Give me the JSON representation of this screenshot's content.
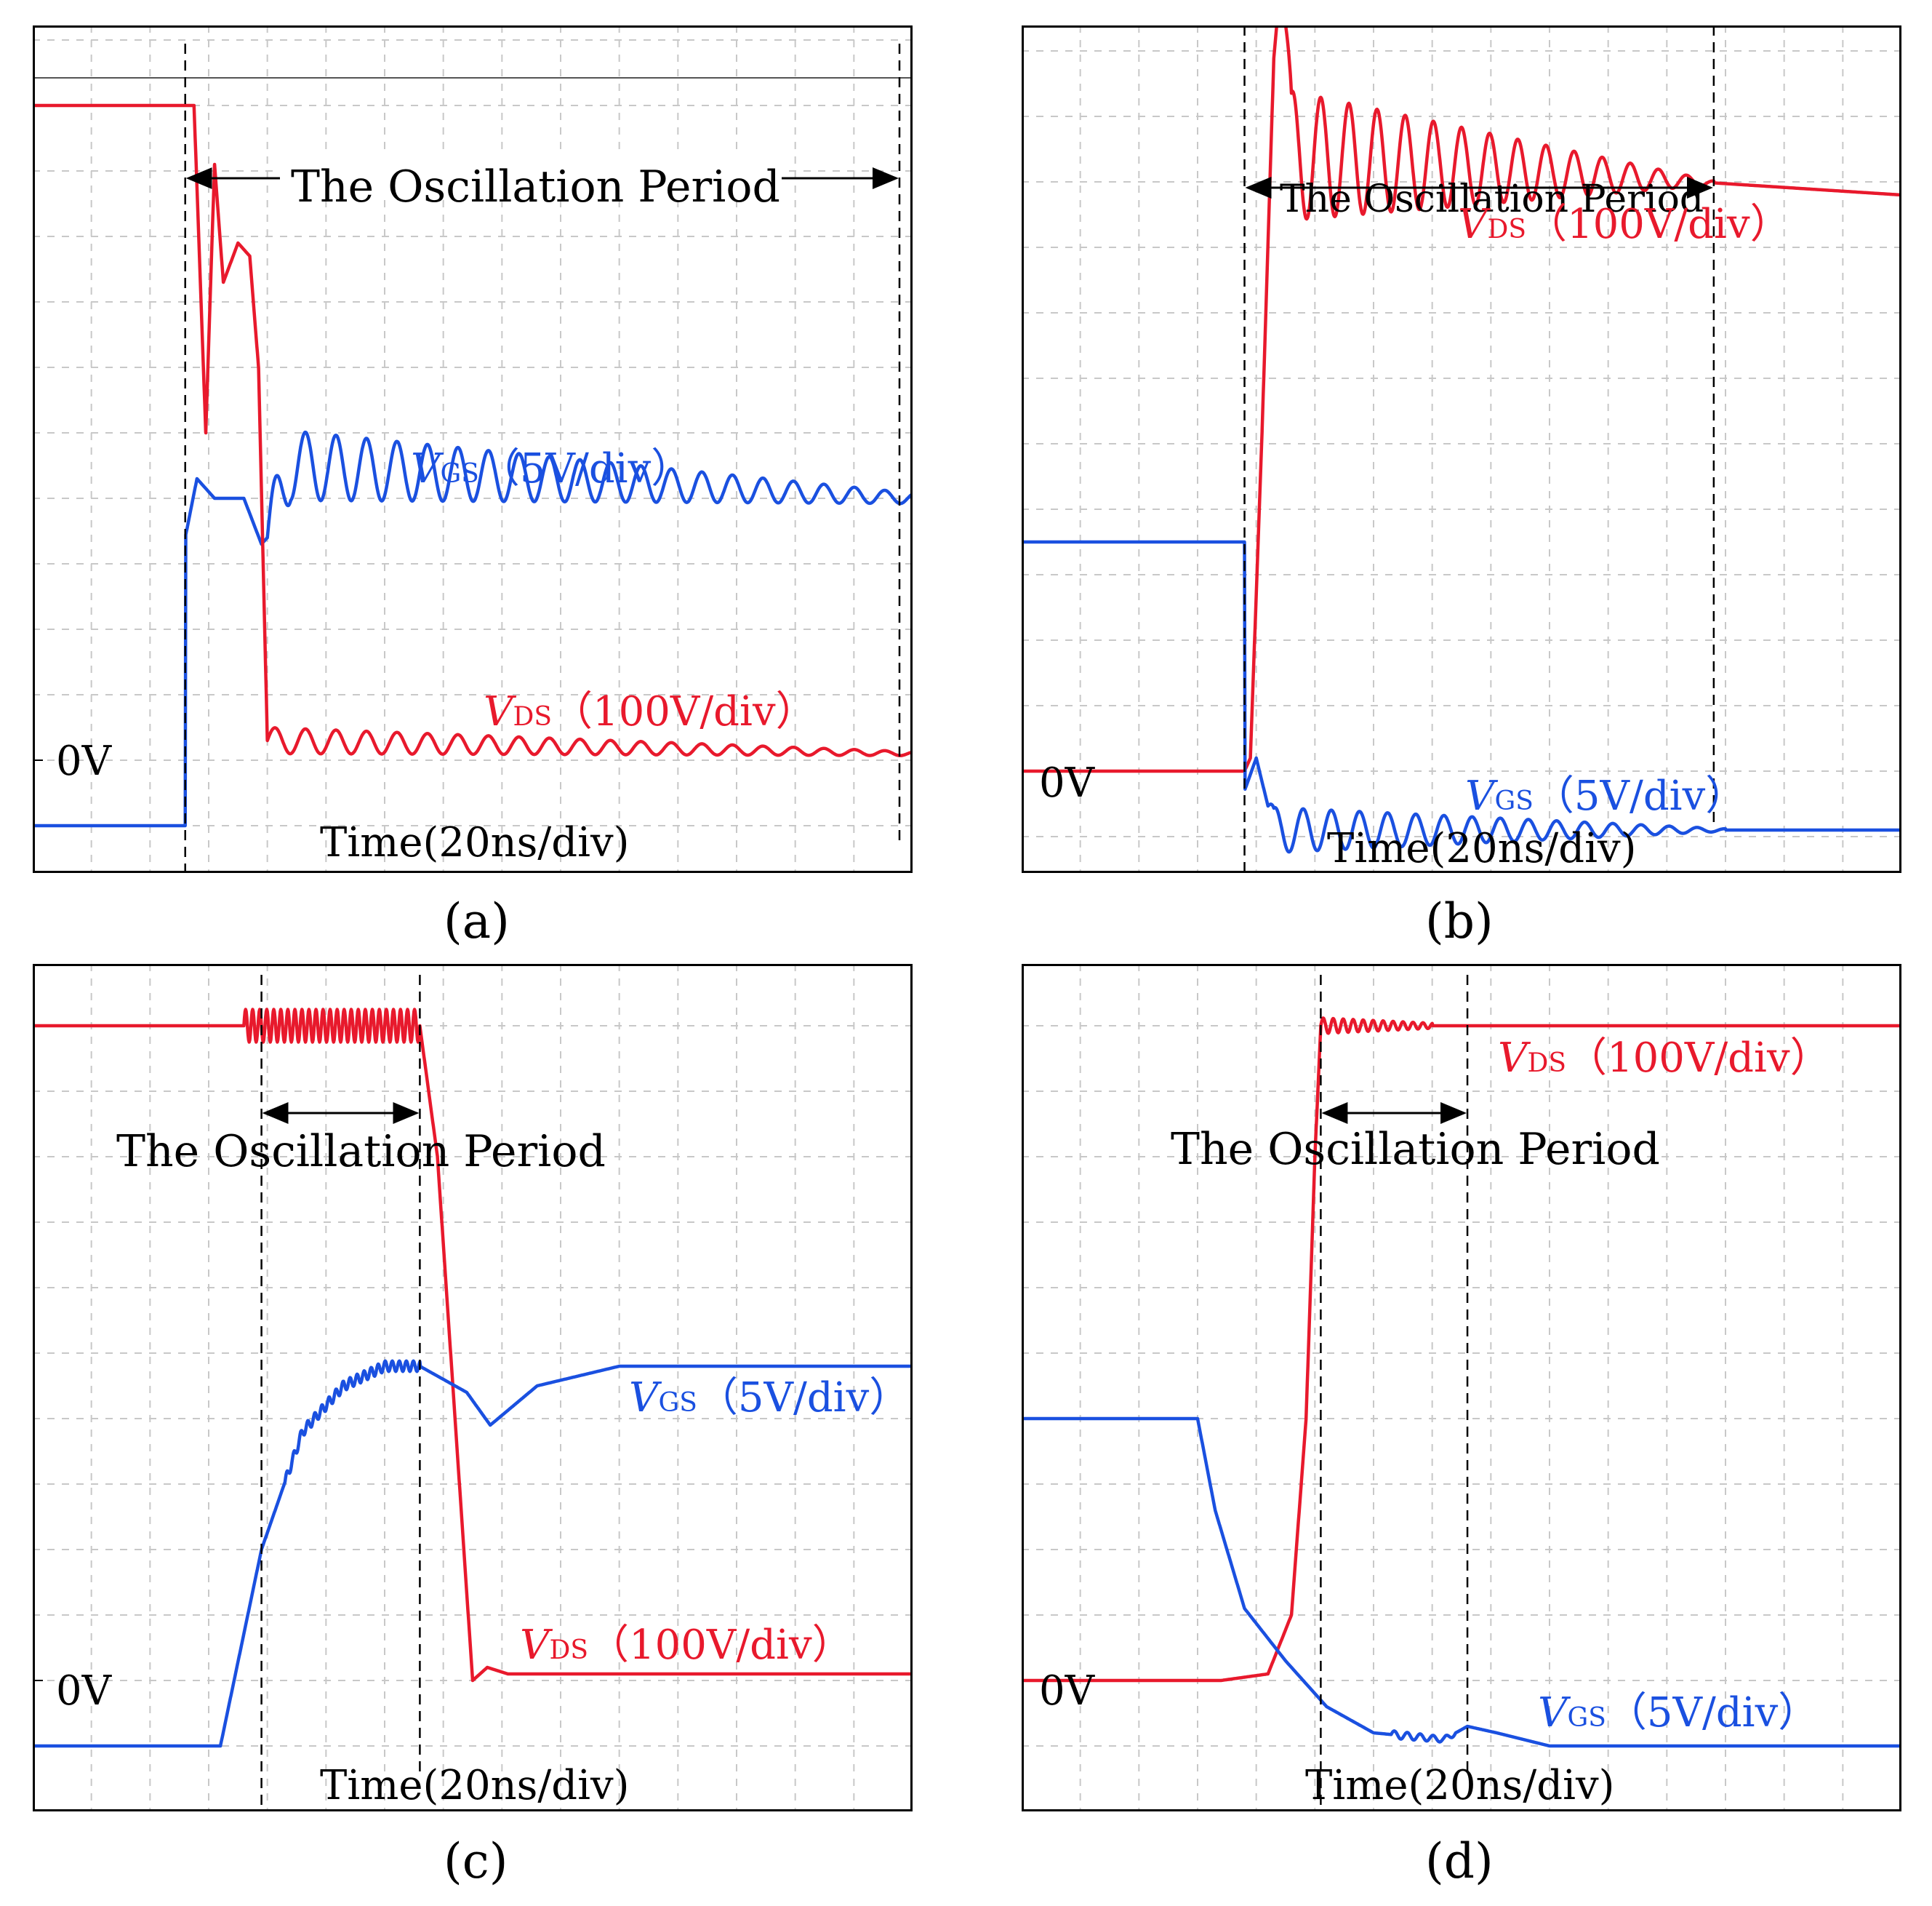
{
  "panels": [
    {
      "id": "a",
      "caption": "(a)",
      "zero_label": "0V",
      "time_label": "Time(20ns/div)",
      "period_label": "The Oscillation Period",
      "vgs_label": {
        "sym": "V",
        "sub": "GS",
        "rest": "（5V/div）"
      },
      "vds_label": {
        "sym": "V",
        "sub": "DS",
        "rest": "（100V/div）"
      }
    },
    {
      "id": "b",
      "caption": "(b)",
      "zero_label": "0V",
      "time_label": "Time(20ns/div)",
      "period_label": "The Oscillation Period",
      "vgs_label": {
        "sym": "V",
        "sub": "GS",
        "rest": "（5V/div）"
      },
      "vds_label": {
        "sym": "V",
        "sub": "DS",
        "rest": "（100V/div）"
      }
    },
    {
      "id": "c",
      "caption": "(c)",
      "zero_label": "0V",
      "time_label": "Time(20ns/div)",
      "period_label": "The Oscillation Period",
      "vgs_label": {
        "sym": "V",
        "sub": "GS",
        "rest": "（5V/div）"
      },
      "vds_label": {
        "sym": "V",
        "sub": "DS",
        "rest": "（100V/div）"
      }
    },
    {
      "id": "d",
      "caption": "(d)",
      "zero_label": "0V",
      "time_label": "Time(20ns/div)",
      "period_label": "The Oscillation Period",
      "vgs_label": {
        "sym": "V",
        "sub": "GS",
        "rest": "（5V/div）"
      },
      "vds_label": {
        "sym": "V",
        "sub": "DS",
        "rest": "（100V/div）"
      }
    }
  ],
  "colors": {
    "vds": "#e8192c",
    "vgs": "#1a50e0",
    "grid": "#c8c8c8",
    "frame": "#000000"
  },
  "chart_data": [
    {
      "type": "line",
      "panel": "a",
      "xlabel": "Time(20ns/div)",
      "x_unit": "div",
      "y_unit": "div",
      "x_range": [
        0,
        15
      ],
      "grid": true,
      "oscillation_period_div": [
        2.6,
        15
      ],
      "series": [
        {
          "name": "VGS（5V/div）",
          "color": "#1a50e0",
          "points": [
            [
              0,
              -1
            ],
            [
              2.6,
              -1
            ],
            [
              2.6,
              3.4
            ],
            [
              2.8,
              4.3
            ],
            [
              3.1,
              4.0
            ],
            [
              3.6,
              4.0
            ],
            [
              3.9,
              3.3
            ],
            [
              4.0,
              3.4
            ],
            [
              4.4,
              4.5
            ],
            [
              15,
              4.0
            ]
          ],
          "ringing": {
            "start_div": 4.0,
            "end_div": 15,
            "amp_start_div": 0.55,
            "amp_end_div": 0.08,
            "period_div": 0.52
          }
        },
        {
          "name": "VDS（100V/div）",
          "color": "#e8192c",
          "points": [
            [
              0,
              10
            ],
            [
              2.75,
              10
            ],
            [
              2.95,
              5.0
            ],
            [
              3.1,
              9.1
            ],
            [
              3.25,
              7.3
            ],
            [
              3.5,
              7.9
            ],
            [
              3.7,
              7.7
            ],
            [
              3.85,
              6.0
            ],
            [
              4.0,
              0.3
            ],
            [
              15,
              0.1
            ]
          ],
          "ringing": {
            "start_div": 4.0,
            "end_div": 15,
            "amp_start_div": 0.2,
            "amp_end_div": 0.03,
            "period_div": 0.52
          }
        }
      ]
    },
    {
      "type": "line",
      "panel": "b",
      "xlabel": "Time(20ns/div)",
      "x_unit": "div",
      "y_unit": "div",
      "x_range": [
        0,
        15
      ],
      "grid": true,
      "oscillation_period_div": [
        3.8,
        11.8
      ],
      "series": [
        {
          "name": "VDS（100V/div）",
          "color": "#e8192c",
          "points": [
            [
              0,
              0
            ],
            [
              3.8,
              0
            ],
            [
              3.9,
              0.2
            ],
            [
              4.1,
              5.2
            ],
            [
              4.3,
              10.9
            ],
            [
              4.45,
              12.4
            ],
            [
              4.6,
              9.4
            ],
            [
              15,
              8.8
            ]
          ],
          "ringing": {
            "start_div": 4.5,
            "end_div": 11.8,
            "amp_start_div": 1.0,
            "amp_end_div": 0.03,
            "period_div": 0.48
          }
        },
        {
          "name": "VGS（5V/div）",
          "color": "#1a50e0",
          "points": [
            [
              0,
              3.5
            ],
            [
              3.8,
              3.5
            ],
            [
              3.8,
              -0.3
            ],
            [
              4.0,
              0.2
            ],
            [
              4.3,
              -0.9
            ],
            [
              15,
              -0.9
            ]
          ],
          "ringing": {
            "start_div": 4.2,
            "end_div": 12.0,
            "amp_start_div": 0.35,
            "amp_end_div": 0.02,
            "period_div": 0.48
          }
        }
      ]
    },
    {
      "type": "line",
      "panel": "c",
      "xlabel": "Time(20ns/div)",
      "x_unit": "div",
      "y_unit": "div",
      "x_range": [
        0,
        15
      ],
      "grid": true,
      "oscillation_period_div": [
        3.9,
        6.6
      ],
      "series": [
        {
          "name": "VDS（100V/div）",
          "color": "#e8192c",
          "points": [
            [
              0,
              10
            ],
            [
              6.6,
              10
            ],
            [
              6.9,
              8.0
            ],
            [
              7.5,
              0.0
            ],
            [
              7.75,
              0.2
            ],
            [
              8.1,
              0.1
            ],
            [
              15,
              0.1
            ]
          ],
          "ringing": {
            "start_div": 3.6,
            "end_div": 6.6,
            "amp_start_div": 0.25,
            "amp_end_div": 0.25,
            "period_div": 0.12
          }
        },
        {
          "name": "VGS（5V/div）",
          "color": "#1a50e0",
          "points": [
            [
              0,
              -1
            ],
            [
              3.2,
              -1
            ],
            [
              3.9,
              2.0
            ],
            [
              4.6,
              3.8
            ],
            [
              5.3,
              4.5
            ],
            [
              6.0,
              4.8
            ],
            [
              6.6,
              4.8
            ],
            [
              7.4,
              4.4
            ],
            [
              7.8,
              3.9
            ],
            [
              8.6,
              4.5
            ],
            [
              10,
              4.8
            ],
            [
              15,
              4.8
            ]
          ],
          "ringing": {
            "start_div": 4.3,
            "end_div": 6.6,
            "amp_start_div": 0.08,
            "amp_end_div": 0.08,
            "period_div": 0.12
          }
        }
      ]
    },
    {
      "type": "line",
      "panel": "d",
      "xlabel": "Time(20ns/div)",
      "x_unit": "div",
      "y_unit": "div",
      "x_range": [
        0,
        15
      ],
      "grid": true,
      "oscillation_period_div": [
        5.1,
        7.6
      ],
      "series": [
        {
          "name": "VDS（100V/div）",
          "color": "#e8192c",
          "points": [
            [
              0,
              0
            ],
            [
              3.4,
              0
            ],
            [
              4.2,
              0.1
            ],
            [
              4.6,
              1.0
            ],
            [
              4.85,
              4.0
            ],
            [
              5.0,
              8.0
            ],
            [
              5.1,
              10.0
            ],
            [
              15,
              10.0
            ]
          ],
          "ringing": {
            "start_div": 5.1,
            "end_div": 7.0,
            "amp_start_div": 0.12,
            "amp_end_div": 0.04,
            "period_div": 0.17
          }
        },
        {
          "name": "VGS（5V/div）",
          "color": "#1a50e0",
          "points": [
            [
              0,
              4.0
            ],
            [
              3.0,
              4.0
            ],
            [
              3.3,
              2.6
            ],
            [
              3.8,
              1.1
            ],
            [
              4.5,
              0.3
            ],
            [
              5.2,
              -0.4
            ],
            [
              6.0,
              -0.8
            ],
            [
              7.2,
              -0.9
            ],
            [
              7.6,
              -0.7
            ],
            [
              8.1,
              -0.8
            ],
            [
              9.0,
              -1.0
            ],
            [
              15,
              -1.0
            ]
          ],
          "ringing": {
            "start_div": 6.3,
            "end_div": 7.4,
            "amp_start_div": 0.06,
            "amp_end_div": 0.04,
            "period_div": 0.22
          }
        }
      ]
    }
  ]
}
